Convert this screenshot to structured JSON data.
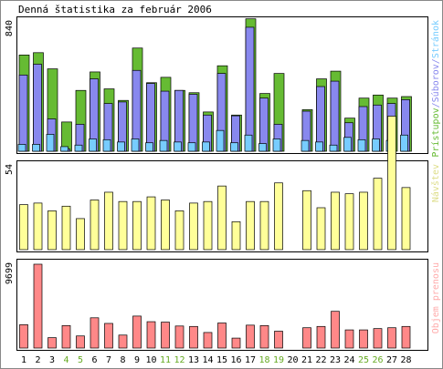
{
  "chart_data": {
    "type": "bar",
    "title": "Denná štatistika za február 2006",
    "days": [
      "1",
      "2",
      "3",
      "4",
      "5",
      "6",
      "7",
      "8",
      "9",
      "10",
      "11",
      "12",
      "13",
      "14",
      "15",
      "16",
      "17",
      "18",
      "19",
      "20",
      "21",
      "22",
      "23",
      "24",
      "25",
      "26",
      "27",
      "28"
    ],
    "weekend_days": [
      "4",
      "5",
      "11",
      "12",
      "18",
      "19",
      "25",
      "26"
    ],
    "colors": {
      "pristupov": "#66bb33",
      "suborov": "#8888ee",
      "stranok": "#77ccff",
      "navstev": "#ffff99",
      "objem": "#ff8888",
      "weekend_label": "#66aa22",
      "axis_label_blue": "#77ccff",
      "axis_label_yellow": "#dddd88",
      "axis_label_pink": "#ffaaaa"
    },
    "panels": [
      {
        "ymax_label": "840",
        "ymax": 840,
        "right_labels": [
          {
            "text": "Prístupov",
            "color_key": "pristupov"
          },
          {
            "text": "/",
            "color_key": "suborov"
          },
          {
            "text": "Súborov",
            "color_key": "suborov"
          },
          {
            "text": "/",
            "color_key": "suborov"
          },
          {
            "text": "Stránok",
            "color_key": "axis_label_blue"
          }
        ],
        "series": [
          {
            "name": "Prístupov",
            "color_key": "pristupov",
            "values": [
              625,
              640,
              535,
              190,
              395,
              515,
              405,
              330,
              670,
              445,
              480,
              395,
              380,
              255,
              555,
              235,
              860,
              375,
              505,
              null,
              270,
              470,
              520,
              215,
              345,
              365,
              345,
              355
            ]
          },
          {
            "name": "Súborov",
            "color_key": "suborov",
            "values": [
              495,
              565,
              210,
              15,
              175,
              470,
              310,
              320,
              525,
              440,
              390,
              395,
              370,
              235,
              505,
              230,
              805,
              345,
              175,
              null,
              260,
              420,
              455,
              185,
              290,
              300,
              310,
              335
            ]
          },
          {
            "name": "Stránok",
            "color_key": "stranok",
            "values": [
              45,
              45,
              110,
              30,
              40,
              80,
              75,
              60,
              80,
              55,
              70,
              60,
              55,
              60,
              135,
              55,
              105,
              50,
              80,
              null,
              70,
              60,
              40,
              90,
              75,
              80,
              70,
              105
            ]
          }
        ]
      },
      {
        "ymax_label": "54",
        "ymax": 54,
        "right_labels": [
          {
            "text": "Návštev",
            "color_key": "axis_label_yellow"
          }
        ],
        "series": [
          {
            "name": "Návštev",
            "color_key": "navstev",
            "values": [
              29,
              30,
              25,
              28,
              20,
              32,
              37,
              31,
              31,
              34,
              32,
              25,
              30,
              31,
              41,
              18,
              31,
              31,
              43,
              null,
              38,
              27,
              37,
              36,
              37,
              46,
              86,
              40
            ]
          }
        ]
      },
      {
        "ymax_label": "9699",
        "ymax": 9699,
        "right_labels": [
          {
            "text": "Objem prenosu",
            "color_key": "axis_label_pink"
          }
        ],
        "series": [
          {
            "name": "Objem prenosu",
            "color_key": "objem",
            "values": [
              2700,
              9700,
              1200,
              2600,
              1400,
              3500,
              2850,
              1500,
              3700,
              3050,
              3000,
              2550,
              2500,
              1800,
              2900,
              1150,
              2650,
              2600,
              1950,
              null,
              2350,
              2500,
              4250,
              2100,
              2100,
              2250,
              2350,
              2500
            ]
          }
        ]
      }
    ]
  }
}
